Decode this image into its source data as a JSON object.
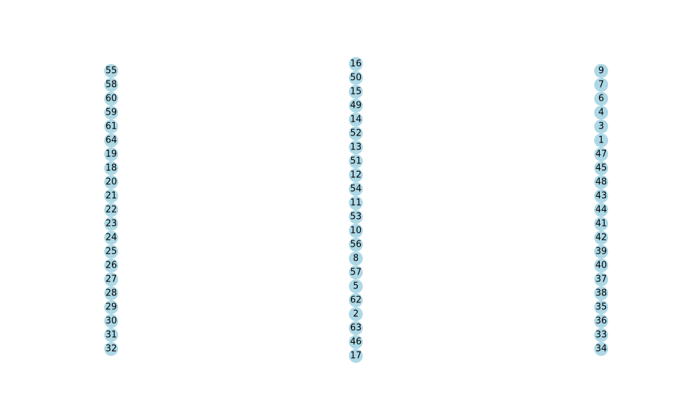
{
  "colors": {
    "node_fill": "#add8e6",
    "label_text": "#000000",
    "background": "#ffffff"
  },
  "diagram": {
    "type": "graph",
    "columns": [
      {
        "name": "left",
        "nodes": [
          "55",
          "58",
          "60",
          "59",
          "61",
          "64",
          "19",
          "18",
          "20",
          "21",
          "22",
          "23",
          "24",
          "25",
          "26",
          "27",
          "28",
          "29",
          "30",
          "31",
          "32"
        ]
      },
      {
        "name": "middle",
        "nodes": [
          "16",
          "50",
          "15",
          "49",
          "14",
          "52",
          "13",
          "51",
          "12",
          "54",
          "11",
          "53",
          "10",
          "56",
          "8",
          "57",
          "5",
          "62",
          "2",
          "63",
          "46",
          "17"
        ]
      },
      {
        "name": "right",
        "nodes": [
          "9",
          "7",
          "6",
          "4",
          "3",
          "1",
          "47",
          "45",
          "48",
          "43",
          "44",
          "41",
          "42",
          "39",
          "40",
          "37",
          "38",
          "35",
          "36",
          "33",
          "34"
        ]
      }
    ]
  }
}
